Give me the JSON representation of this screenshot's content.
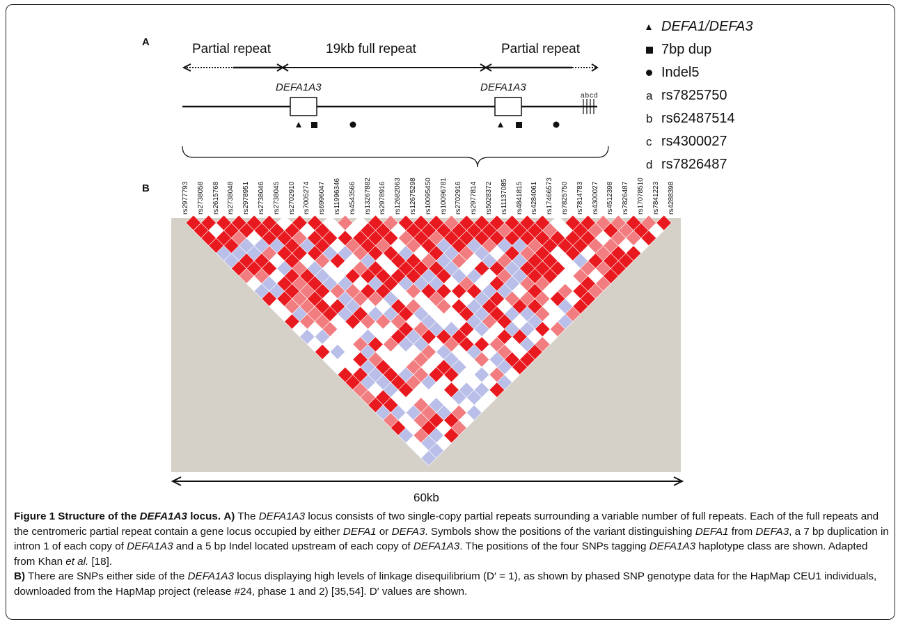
{
  "panel_a": {
    "label": "A",
    "partial_left": "Partial repeat",
    "full": "19kb full repeat",
    "partial_right": "Partial repeat",
    "gene_left": "DEFA1A3",
    "gene_right": "DEFA1A3",
    "snp_letters": "abcd"
  },
  "legend": [
    {
      "symbol": "triangle",
      "text": "DEFA1/DEFA3",
      "italic": true
    },
    {
      "symbol": "square",
      "text": "7bp dup",
      "italic": false
    },
    {
      "symbol": "circle",
      "text": "Indel5",
      "italic": false
    },
    {
      "symbol": "a",
      "text": "rs7825750",
      "italic": false
    },
    {
      "symbol": "b",
      "text": "rs62487514",
      "italic": false
    },
    {
      "symbol": "c",
      "text": "rs4300027",
      "italic": false
    },
    {
      "symbol": "d",
      "text": "rs7826487",
      "italic": false
    }
  ],
  "panel_b": {
    "label": "B",
    "snps": [
      "rs2977793",
      "rs2738058",
      "rs2615768",
      "rs2738048",
      "rs2978951",
      "rs2738046",
      "rs2738045",
      "rs2702910",
      "rs7005274",
      "rs6996047",
      "rs11996346",
      "rs4543566",
      "rs13267882",
      "rs2978916",
      "rs12682063",
      "rs12675298",
      "rs10095450",
      "rs10096781",
      "rs2702916",
      "rs2977814",
      "rs5028372",
      "rs11137085",
      "rs4841815",
      "rs4284061",
      "rs17466573",
      "rs7825750",
      "rs7814783",
      "rs4300027",
      "rs4512398",
      "rs7826487",
      "rs17078510",
      "rs7841223",
      "rs4288398"
    ],
    "scale": "60kb"
  },
  "colors": {
    "strong_ld": "#e8191f",
    "medium_ld": "#f27d80",
    "weak_ld": "#ffffff",
    "uninformative": "#b9bfe8",
    "background": "#d6d1c8"
  },
  "caption": {
    "title_prefix": "Figure 1 Structure of the ",
    "title_gene": "DEFA1A3",
    "title_suffix": " locus.",
    "a_label": "A)",
    "a_1": " The ",
    "a_gene1": "DEFA1A3",
    "a_2": " locus consists of two single-copy partial repeats surrounding a variable number of full repeats. Each of the full repeats and the centromeric partial repeat contain a gene locus occupied by either ",
    "a_gene2": "DEFA1",
    "a_3": " or ",
    "a_gene3": "DEFA3",
    "a_4": ". Symbols show the positions of the variant distinguishing ",
    "a_gene4": "DEFA1",
    "a_5": " from ",
    "a_gene5": "DEFA3",
    "a_6": ", a 7 bp duplication in intron 1 of each copy of ",
    "a_gene6": "DEFA1A3",
    "a_7": " and a 5 bp Indel located upstream of each copy of ",
    "a_gene7": "DEFA1A3",
    "a_8": ". The positions of the four SNPs tagging ",
    "a_gene8": "DEFA1A3",
    "a_9": " haplotype class are shown. Adapted from Khan ",
    "a_etal": "et al.",
    "a_10": " [18].",
    "b_label": "B)",
    "b_1": " There are SNPs either side of the ",
    "b_gene1": "DEFA1A3",
    "b_2": " locus displaying high levels of linkage disequilibrium (D′ = 1), as shown by phased SNP genotype data for the HapMap CEU1 individuals, downloaded from the HapMap project (release #24, phase 1 and 2) [35,54]. D′ values are shown."
  }
}
